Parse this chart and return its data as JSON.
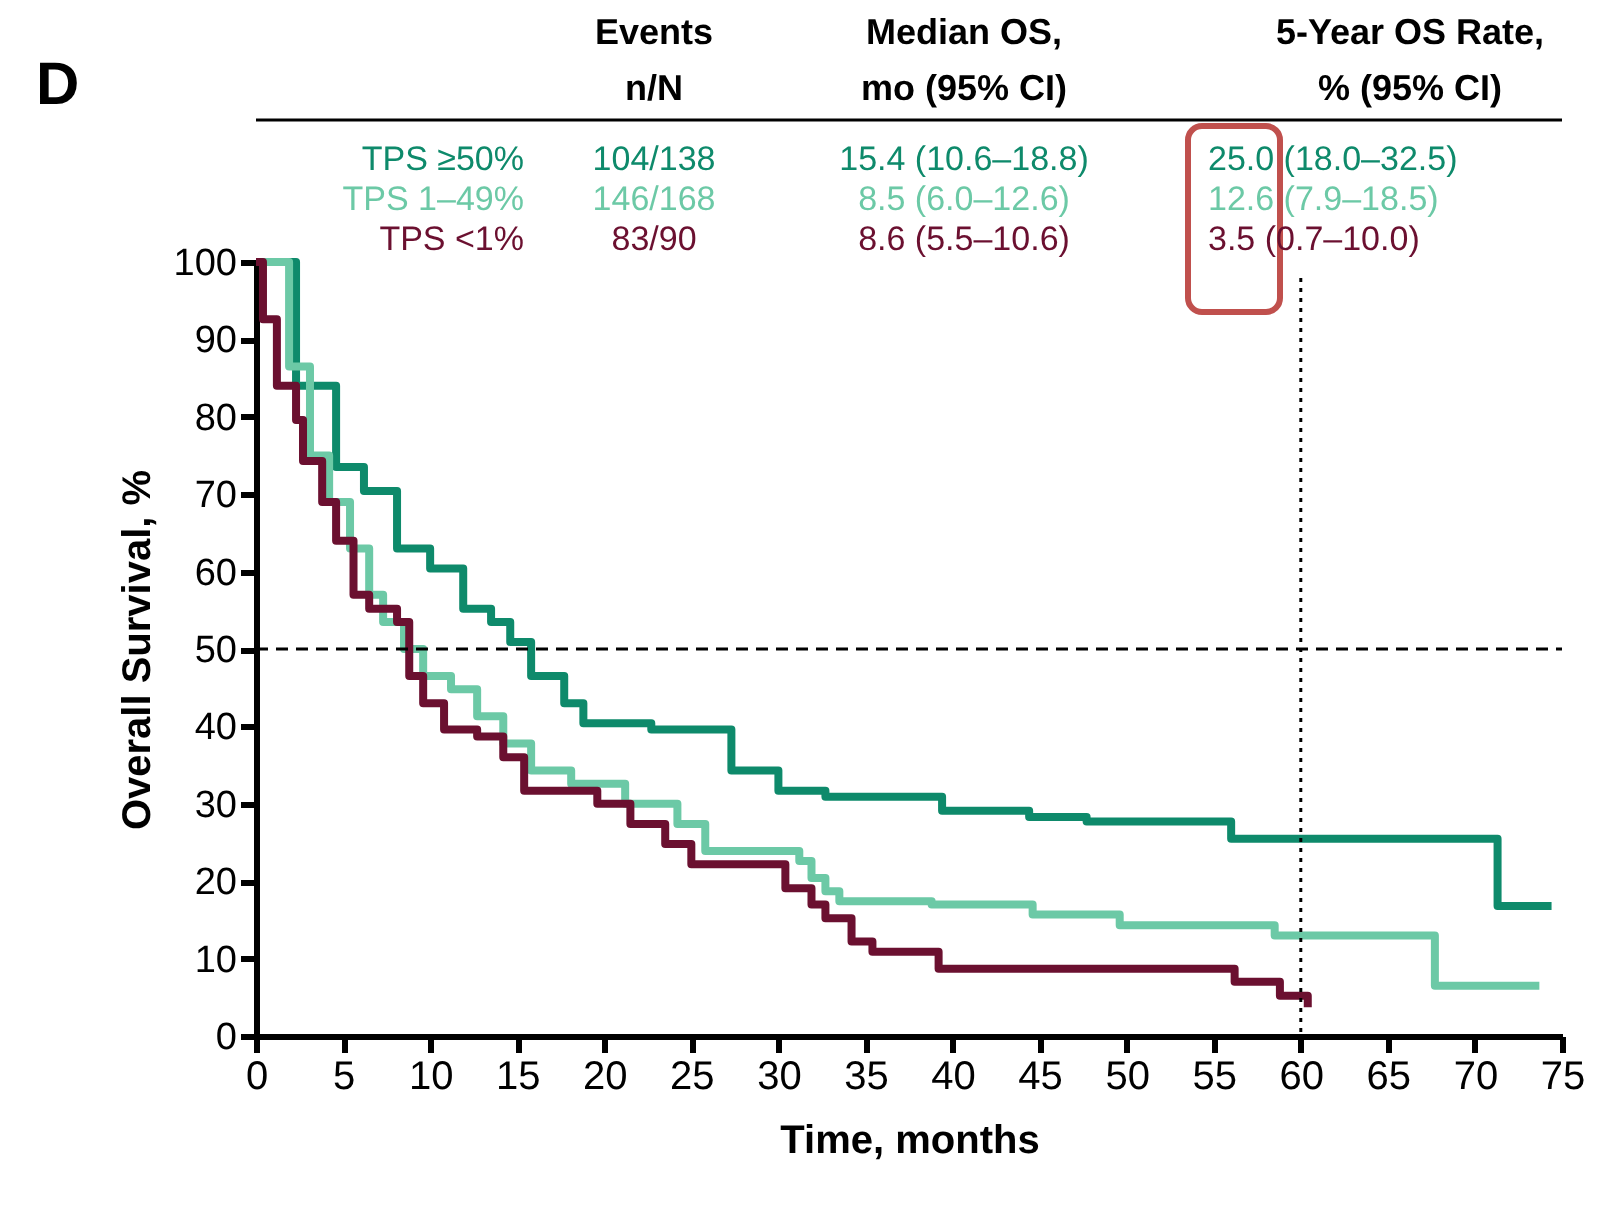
{
  "chart_data": {
    "type": "step",
    "title": "D",
    "xlabel": "Time, months",
    "ylabel": "Overall Survival, %",
    "xlim": [
      0,
      75
    ],
    "ylim": [
      0,
      100
    ],
    "xticks": [
      0,
      5,
      10,
      15,
      20,
      25,
      30,
      35,
      40,
      45,
      50,
      55,
      60,
      65,
      70,
      75
    ],
    "yticks": [
      0,
      10,
      20,
      30,
      40,
      50,
      60,
      70,
      80,
      90,
      100
    ],
    "grid": false,
    "legend": false,
    "line_style": "solid",
    "ref_lines": [
      {
        "axis": "y",
        "value": 50,
        "color": "#000000",
        "line_style": "dashed"
      },
      {
        "axis": "x",
        "value": 60,
        "color": "#000000",
        "line_style": "dotted"
      }
    ],
    "annotations": [
      "Events",
      "Median OS,",
      "5-Year OS Rate,",
      "n/N",
      "mo (95% CI)",
      "% (95% CI)",
      "104/138",
      "15.4 (10.6–18.8)",
      "25.0 (18.0–32.5)",
      "146/168",
      "8.5 (6.0–12.6)",
      "12.6 (7.9–18.5)",
      "83/90",
      "8.6 (5.5–10.6)",
      "3.5 (0.7–10.0)"
    ],
    "series": [
      {
        "name": "TPS ≥50%",
        "color": "#0e8a6b",
        "x": [
          0,
          2.3,
          4.6,
          6.2,
          8.1,
          10,
          11.9,
          13.5,
          14.6,
          15.8,
          17.7,
          18.8,
          22.7,
          27.3,
          30,
          31.2,
          32.7,
          39.4,
          44.4,
          47.7,
          56,
          71.3,
          74.4
        ],
        "values": [
          100,
          84,
          73.5,
          70.4,
          63,
          60.4,
          55.2,
          53.5,
          50.9,
          46.5,
          43,
          40.4,
          39.6,
          34.3,
          31.7,
          31.7,
          30.9,
          29.1,
          28.3,
          27.7,
          25.5,
          16.8,
          16.8
        ]
      },
      {
        "name": "TPS 1–49%",
        "color": "#6cc9a6",
        "x": [
          0,
          1.9,
          3.1,
          4.2,
          5.4,
          6.5,
          7.3,
          8.5,
          9.6,
          11.2,
          12.7,
          14.2,
          15.8,
          18.1,
          21.2,
          24.2,
          25.8,
          31.2,
          31.9,
          32.7,
          33.5,
          38.8,
          44.6,
          49.6,
          58.5,
          67.7,
          73.7
        ],
        "values": [
          100,
          86.5,
          75,
          69,
          63,
          57,
          53.5,
          50,
          46.5,
          44.8,
          41.3,
          37.8,
          34.3,
          32.6,
          30,
          27.4,
          23.9,
          22.6,
          20.4,
          18.7,
          17.4,
          17,
          15.7,
          14.3,
          13,
          6.5,
          6.5
        ]
      },
      {
        "name": "TPS <1%",
        "color": "#6b1030",
        "x": [
          0,
          0.4,
          1.2,
          2.3,
          2.7,
          3.8,
          4.6,
          5.6,
          6.5,
          8.1,
          8.8,
          9.6,
          10.8,
          12.7,
          14.2,
          15.4,
          19.6,
          21.5,
          23.5,
          25,
          30.4,
          31.9,
          32.7,
          34.2,
          35.4,
          39.2,
          56.2,
          58.8,
          60.4
        ],
        "values": [
          100,
          92.6,
          84,
          79.6,
          74.3,
          69,
          64,
          57,
          55.2,
          53.5,
          46.5,
          43,
          39.6,
          38.7,
          36,
          31.7,
          30,
          27.4,
          24.8,
          22.2,
          19.1,
          17,
          15.2,
          12.2,
          10.9,
          8.7,
          7,
          5.2,
          3.7
        ]
      }
    ]
  }
}
